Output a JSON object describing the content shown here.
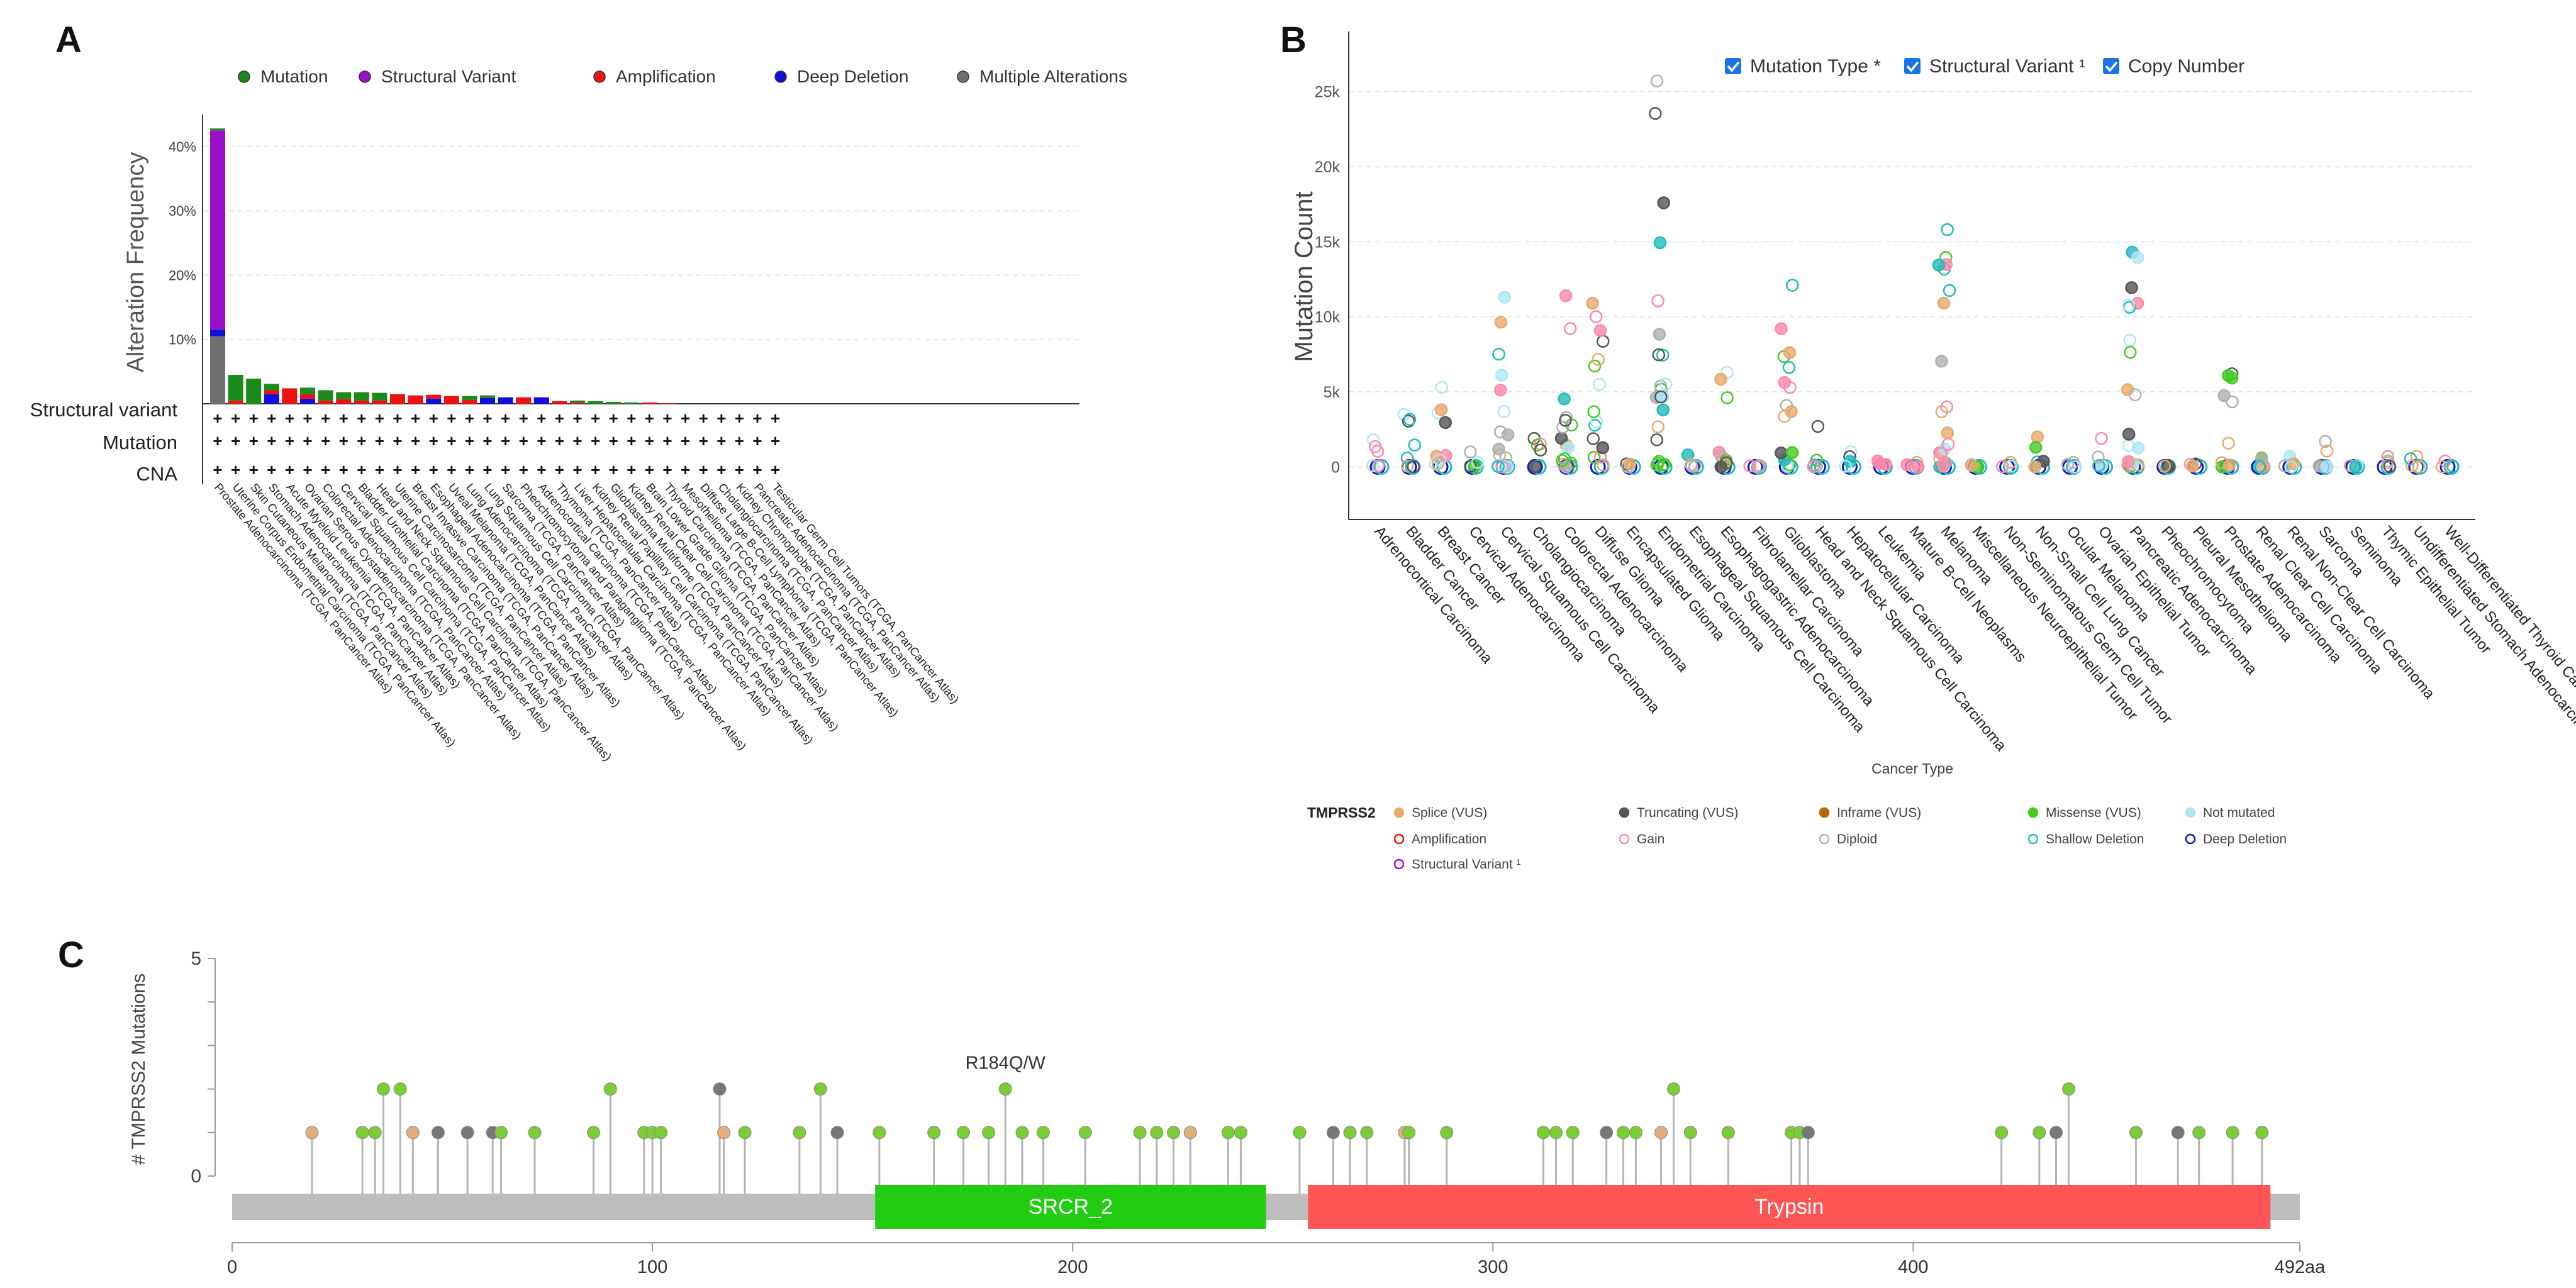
{
  "panels": {
    "a": "A",
    "b": "B",
    "c": "C"
  },
  "colors": {
    "mutation": "#1a8a1a",
    "structural_variant": "#9b11c9",
    "amplification": "#ee1111",
    "deep_deletion": "#1010d8",
    "multiple": "#707070",
    "grid": "#e6e6e6",
    "gene_bar": "#bdbdbd",
    "srcr": "#22cc11",
    "trypsin": "#ff5555",
    "lollipop_missense": "#7ccc33",
    "lollipop_truncating": "#777777",
    "lollipop_splice": "#e0b07a",
    "checkbox": "#1a73e8"
  },
  "chart_data": [
    {
      "id": "A",
      "type": "bar",
      "title": "",
      "ylabel": "Alteration Frequency",
      "xlabel": "",
      "ylim": [
        0,
        44
      ],
      "yticks": [
        "10%",
        "20%",
        "30%",
        "40%"
      ],
      "ytick_values": [
        10,
        20,
        30,
        40
      ],
      "legend": [
        "Mutation",
        "Structural Variant",
        "Amplification",
        "Deep Deletion",
        "Multiple Alterations"
      ],
      "legend_position": "top",
      "row_labels": [
        "Structural variant",
        "Mutation",
        "CNA"
      ],
      "row_symbol": "+",
      "categories": [
        "Prostate Adenocarcinoma (TCGA, PanCancer Atlas)",
        "Uterine Corpus Endometrial Carcinoma (TCGA, PanCancer Atlas)",
        "Skin Cutaneous Melanoma (TCGA, PanCancer Atlas)",
        "Stomach Adenocarcinoma (TCGA, PanCancer Atlas)",
        "Acute Myeloid Leukemia (TCGA, PanCancer Atlas)",
        "Ovarian Serous Cystadenocarcinoma (TCGA, PanCancer Atlas)",
        "Colorectal Adenocarcinoma (TCGA, PanCancer Atlas)",
        "Cervical Squamous Cell Carcinoma (TCGA, PanCancer Atlas)",
        "Bladder Urothelial Carcinoma (TCGA, PanCancer Atlas)",
        "Head and Neck Squamous Cell Carcinoma (TCGA, PanCancer Atlas)",
        "Uterine Carcinosarcoma (TCGA, PanCancer Atlas)",
        "Breast Invasive Carcinoma (TCGA, PanCancer Atlas)",
        "Esophageal Adenocarcinoma (TCGA, PanCancer Atlas)",
        "Uveal Melanoma (TCGA, PanCancer Atlas)",
        "Lung Adenocarcinoma (TCGA, PanCancer Atlas)",
        "Lung Squamous Cell Carcinoma (TCGA, PanCancer Atlas)",
        "Sarcoma (TCGA, PanCancer Atlas)",
        "Pheochromocytoma and Paraganglioma (TCGA, PanCancer Atlas)",
        "Adrenocortical Carcinoma (TCGA, PanCancer Atlas)",
        "Thymoma (TCGA, PanCancer Atlas)",
        "Liver Hepatocellular Carcinoma (TCGA, PanCancer Atlas)",
        "Kidney Renal Papillary Cell Carcinoma (TCGA, PanCancer Atlas)",
        "Glioblastoma Multiforme (TCGA, PanCancer Atlas)",
        "Kidney Renal Clear Cell Carcinoma (TCGA, PanCancer Atlas)",
        "Brain Lower Grade Glioma (TCGA, PanCancer Atlas)",
        "Thyroid Carcinoma (TCGA, PanCancer Atlas)",
        "Mesothelioma (TCGA, PanCancer Atlas)",
        "Diffuse Large B-Cell Lymphoma (TCGA, PanCancer Atlas)",
        "Cholangiocarcinoma (TCGA, PanCancer Atlas)",
        "Kidney Chromophobe (TCGA, PanCancer Atlas)",
        "Pancreatic Adenocarcinoma (TCGA, PanCancer Atlas)",
        "Testicular Germ Cell Tumors (TCGA, PanCancer Atlas)"
      ],
      "series": [
        {
          "name": "Multiple Alterations",
          "values": [
            10.5,
            0,
            0,
            0,
            0,
            0,
            0,
            0,
            0,
            0,
            0,
            0,
            0,
            0,
            0,
            0,
            0,
            0,
            0,
            0,
            0,
            0,
            0,
            0,
            0,
            0,
            0,
            0,
            0,
            0,
            0,
            0
          ]
        },
        {
          "name": "Deep Deletion",
          "values": [
            1.0,
            0,
            0,
            1.5,
            0,
            0.8,
            0,
            0,
            0,
            0,
            0,
            0,
            0.8,
            0,
            0,
            0.9,
            1.0,
            0,
            1.0,
            0,
            0,
            0,
            0,
            0,
            0,
            0,
            0,
            0,
            0,
            0,
            0,
            0
          ]
        },
        {
          "name": "Amplification",
          "values": [
            0,
            0.5,
            0,
            0.6,
            2.4,
            0.7,
            0.5,
            0.7,
            0.5,
            0.5,
            1.5,
            1.3,
            0.6,
            1.2,
            0.6,
            0,
            0,
            1.0,
            0,
            0.4,
            0.2,
            0,
            0,
            0,
            0.2,
            0.1,
            0,
            0,
            0,
            0,
            0,
            0
          ]
        },
        {
          "name": "Structural Variant",
          "values": [
            31.0,
            0,
            0,
            0,
            0,
            0,
            0,
            0,
            0,
            0,
            0,
            0,
            0,
            0,
            0,
            0,
            0,
            0,
            0,
            0,
            0,
            0,
            0,
            0,
            0,
            0,
            0,
            0,
            0,
            0,
            0,
            0
          ]
        },
        {
          "name": "Mutation",
          "values": [
            0.3,
            4.0,
            3.9,
            1.0,
            0,
            1.0,
            1.6,
            1.1,
            1.3,
            1.2,
            0,
            0,
            0,
            0,
            0.6,
            0.4,
            0,
            0,
            0,
            0,
            0.3,
            0.4,
            0.3,
            0.2,
            0,
            0,
            0,
            0,
            0,
            0,
            0,
            0
          ]
        }
      ]
    },
    {
      "id": "B",
      "type": "scatter",
      "title": "",
      "ylabel": "Mutation Count",
      "xlabel": "Cancer Type",
      "ylim": [
        -3500,
        29000
      ],
      "yticks": [
        "0",
        "5k",
        "10k",
        "15k",
        "20k",
        "25k"
      ],
      "ytick_values": [
        0,
        5000,
        10000,
        15000,
        20000,
        25000
      ],
      "checkboxes": [
        "Mutation Type *",
        "Structural Variant ¹",
        "Copy Number"
      ],
      "categories": [
        "Adrenocortical Carcinoma",
        "Bladder Cancer",
        "Breast Cancer",
        "Cervical Adenocarcinoma",
        "Cervical Squamous Cell Carcinoma",
        "Cholangiocarcinoma",
        "Colorectal Adenocarcinoma",
        "Diffuse Glioma",
        "Encapsulated Glioma",
        "Endometrial Carcinoma",
        "Esophageal Squamous Cell Carcinoma",
        "Esophagogastric Adenocarcinoma",
        "Fibrolamellar Carcinoma",
        "Glioblastoma",
        "Head and Neck Squamous Cell Carcinoma",
        "Hepatocellular Carcinoma",
        "Leukemia",
        "Mature B-Cell Neoplasms",
        "Melanoma",
        "Miscellaneous Neuroepithelial Tumor",
        "Non-Seminomatous Germ Cell Tumor",
        "Non-Small Cell Lung Cancer",
        "Ocular Melanoma",
        "Ovarian Epithelial Tumor",
        "Pancreatic Adenocarcinoma",
        "Pheochromocytoma",
        "Pleural Mesothelioma",
        "Prostate Adenocarcinoma",
        "Renal Clear Cell Carcinoma",
        "Renal Non-Clear Cell Carcinoma",
        "Sarcoma",
        "Seminoma",
        "Thymic Epithelial Tumor",
        "Undifferentiated Stomach Adenocarcinoma",
        "Well-Differentiated Thyroid Cancer"
      ],
      "max_counts": [
        1800,
        3500,
        5300,
        1000,
        11300,
        1900,
        11400,
        10900,
        200,
        25700,
        800,
        6300,
        100,
        12100,
        2700,
        1000,
        400,
        300,
        15800,
        200,
        300,
        2000,
        300,
        1900,
        14300,
        100,
        200,
        6200,
        600,
        700,
        1700,
        100,
        700,
        700,
        400
      ],
      "legend_title": "TMPRSS2",
      "legend": [
        "Splice (VUS)",
        "Truncating (VUS)",
        "Inframe (VUS)",
        "Missense (VUS)",
        "Not mutated",
        "Amplification",
        "Gain",
        "Diploid",
        "Shallow Deletion",
        "Deep Deletion",
        "Structural Variant ¹"
      ],
      "legend_colors": [
        "#e8a96b",
        "#555555",
        "#b8660b",
        "#44cc22",
        "#aee6f5",
        "#ee1111",
        "#ff88aa",
        "#b0b0b0",
        "#22bbbb",
        "#1010d8",
        "#9b11c9"
      ],
      "legend_filled": [
        true,
        true,
        true,
        true,
        true,
        false,
        false,
        false,
        false,
        false,
        false
      ]
    },
    {
      "id": "C",
      "type": "scatter",
      "title": "",
      "ylabel": "# TMPRSS2 Mutations",
      "xlabel": "",
      "xlim": [
        0,
        492
      ],
      "ylim": [
        0,
        5
      ],
      "xticks": [
        "0",
        "100",
        "200",
        "300",
        "400",
        "492aa"
      ],
      "xtick_values": [
        0,
        100,
        200,
        300,
        400,
        492
      ],
      "yticks": [
        "0",
        "5"
      ],
      "annotation": "R184Q/W",
      "annotation_position": 184,
      "domains": [
        {
          "name": "SRCR_2",
          "start": 153,
          "end": 246
        },
        {
          "name": "Trypsin",
          "start": 256,
          "end": 485
        }
      ],
      "mutations": [
        {
          "pos": 19,
          "count": 1,
          "type": "splice"
        },
        {
          "pos": 31,
          "count": 1,
          "type": "missense"
        },
        {
          "pos": 34,
          "count": 1,
          "type": "missense"
        },
        {
          "pos": 36,
          "count": 2,
          "type": "missense"
        },
        {
          "pos": 40,
          "count": 2,
          "type": "missense"
        },
        {
          "pos": 43,
          "count": 1,
          "type": "splice"
        },
        {
          "pos": 49,
          "count": 1,
          "type": "truncating"
        },
        {
          "pos": 56,
          "count": 1,
          "type": "truncating"
        },
        {
          "pos": 62,
          "count": 1,
          "type": "truncating"
        },
        {
          "pos": 64,
          "count": 1,
          "type": "missense"
        },
        {
          "pos": 72,
          "count": 1,
          "type": "missense"
        },
        {
          "pos": 86,
          "count": 1,
          "type": "missense"
        },
        {
          "pos": 90,
          "count": 2,
          "type": "missense"
        },
        {
          "pos": 98,
          "count": 1,
          "type": "missense"
        },
        {
          "pos": 100,
          "count": 1,
          "type": "missense"
        },
        {
          "pos": 102,
          "count": 1,
          "type": "missense"
        },
        {
          "pos": 116,
          "count": 2,
          "type": "truncating"
        },
        {
          "pos": 117,
          "count": 1,
          "type": "splice"
        },
        {
          "pos": 122,
          "count": 1,
          "type": "missense"
        },
        {
          "pos": 135,
          "count": 1,
          "type": "missense"
        },
        {
          "pos": 140,
          "count": 2,
          "type": "missense"
        },
        {
          "pos": 144,
          "count": 1,
          "type": "truncating"
        },
        {
          "pos": 154,
          "count": 1,
          "type": "missense"
        },
        {
          "pos": 167,
          "count": 1,
          "type": "missense"
        },
        {
          "pos": 174,
          "count": 1,
          "type": "missense"
        },
        {
          "pos": 180,
          "count": 1,
          "type": "missense"
        },
        {
          "pos": 184,
          "count": 2,
          "type": "missense"
        },
        {
          "pos": 188,
          "count": 1,
          "type": "missense"
        },
        {
          "pos": 193,
          "count": 1,
          "type": "missense"
        },
        {
          "pos": 203,
          "count": 1,
          "type": "missense"
        },
        {
          "pos": 216,
          "count": 1,
          "type": "missense"
        },
        {
          "pos": 220,
          "count": 1,
          "type": "missense"
        },
        {
          "pos": 224,
          "count": 1,
          "type": "missense"
        },
        {
          "pos": 228,
          "count": 1,
          "type": "splice"
        },
        {
          "pos": 237,
          "count": 1,
          "type": "missense"
        },
        {
          "pos": 240,
          "count": 1,
          "type": "missense"
        },
        {
          "pos": 254,
          "count": 1,
          "type": "missense"
        },
        {
          "pos": 262,
          "count": 1,
          "type": "truncating"
        },
        {
          "pos": 266,
          "count": 1,
          "type": "missense"
        },
        {
          "pos": 270,
          "count": 1,
          "type": "missense"
        },
        {
          "pos": 279,
          "count": 1,
          "type": "splice"
        },
        {
          "pos": 280,
          "count": 1,
          "type": "missense"
        },
        {
          "pos": 289,
          "count": 1,
          "type": "missense"
        },
        {
          "pos": 312,
          "count": 1,
          "type": "missense"
        },
        {
          "pos": 315,
          "count": 1,
          "type": "missense"
        },
        {
          "pos": 319,
          "count": 1,
          "type": "missense"
        },
        {
          "pos": 327,
          "count": 1,
          "type": "truncating"
        },
        {
          "pos": 331,
          "count": 1,
          "type": "missense"
        },
        {
          "pos": 334,
          "count": 1,
          "type": "missense"
        },
        {
          "pos": 340,
          "count": 1,
          "type": "splice"
        },
        {
          "pos": 343,
          "count": 2,
          "type": "missense"
        },
        {
          "pos": 347,
          "count": 1,
          "type": "missense"
        },
        {
          "pos": 356,
          "count": 1,
          "type": "missense"
        },
        {
          "pos": 371,
          "count": 1,
          "type": "missense"
        },
        {
          "pos": 373,
          "count": 1,
          "type": "missense"
        },
        {
          "pos": 375,
          "count": 1,
          "type": "truncating"
        },
        {
          "pos": 421,
          "count": 1,
          "type": "missense"
        },
        {
          "pos": 430,
          "count": 1,
          "type": "missense"
        },
        {
          "pos": 434,
          "count": 1,
          "type": "truncating"
        },
        {
          "pos": 437,
          "count": 2,
          "type": "missense"
        },
        {
          "pos": 453,
          "count": 1,
          "type": "missense"
        },
        {
          "pos": 463,
          "count": 1,
          "type": "truncating"
        },
        {
          "pos": 468,
          "count": 1,
          "type": "missense"
        },
        {
          "pos": 476,
          "count": 1,
          "type": "missense"
        },
        {
          "pos": 483,
          "count": 1,
          "type": "missense"
        }
      ]
    }
  ]
}
